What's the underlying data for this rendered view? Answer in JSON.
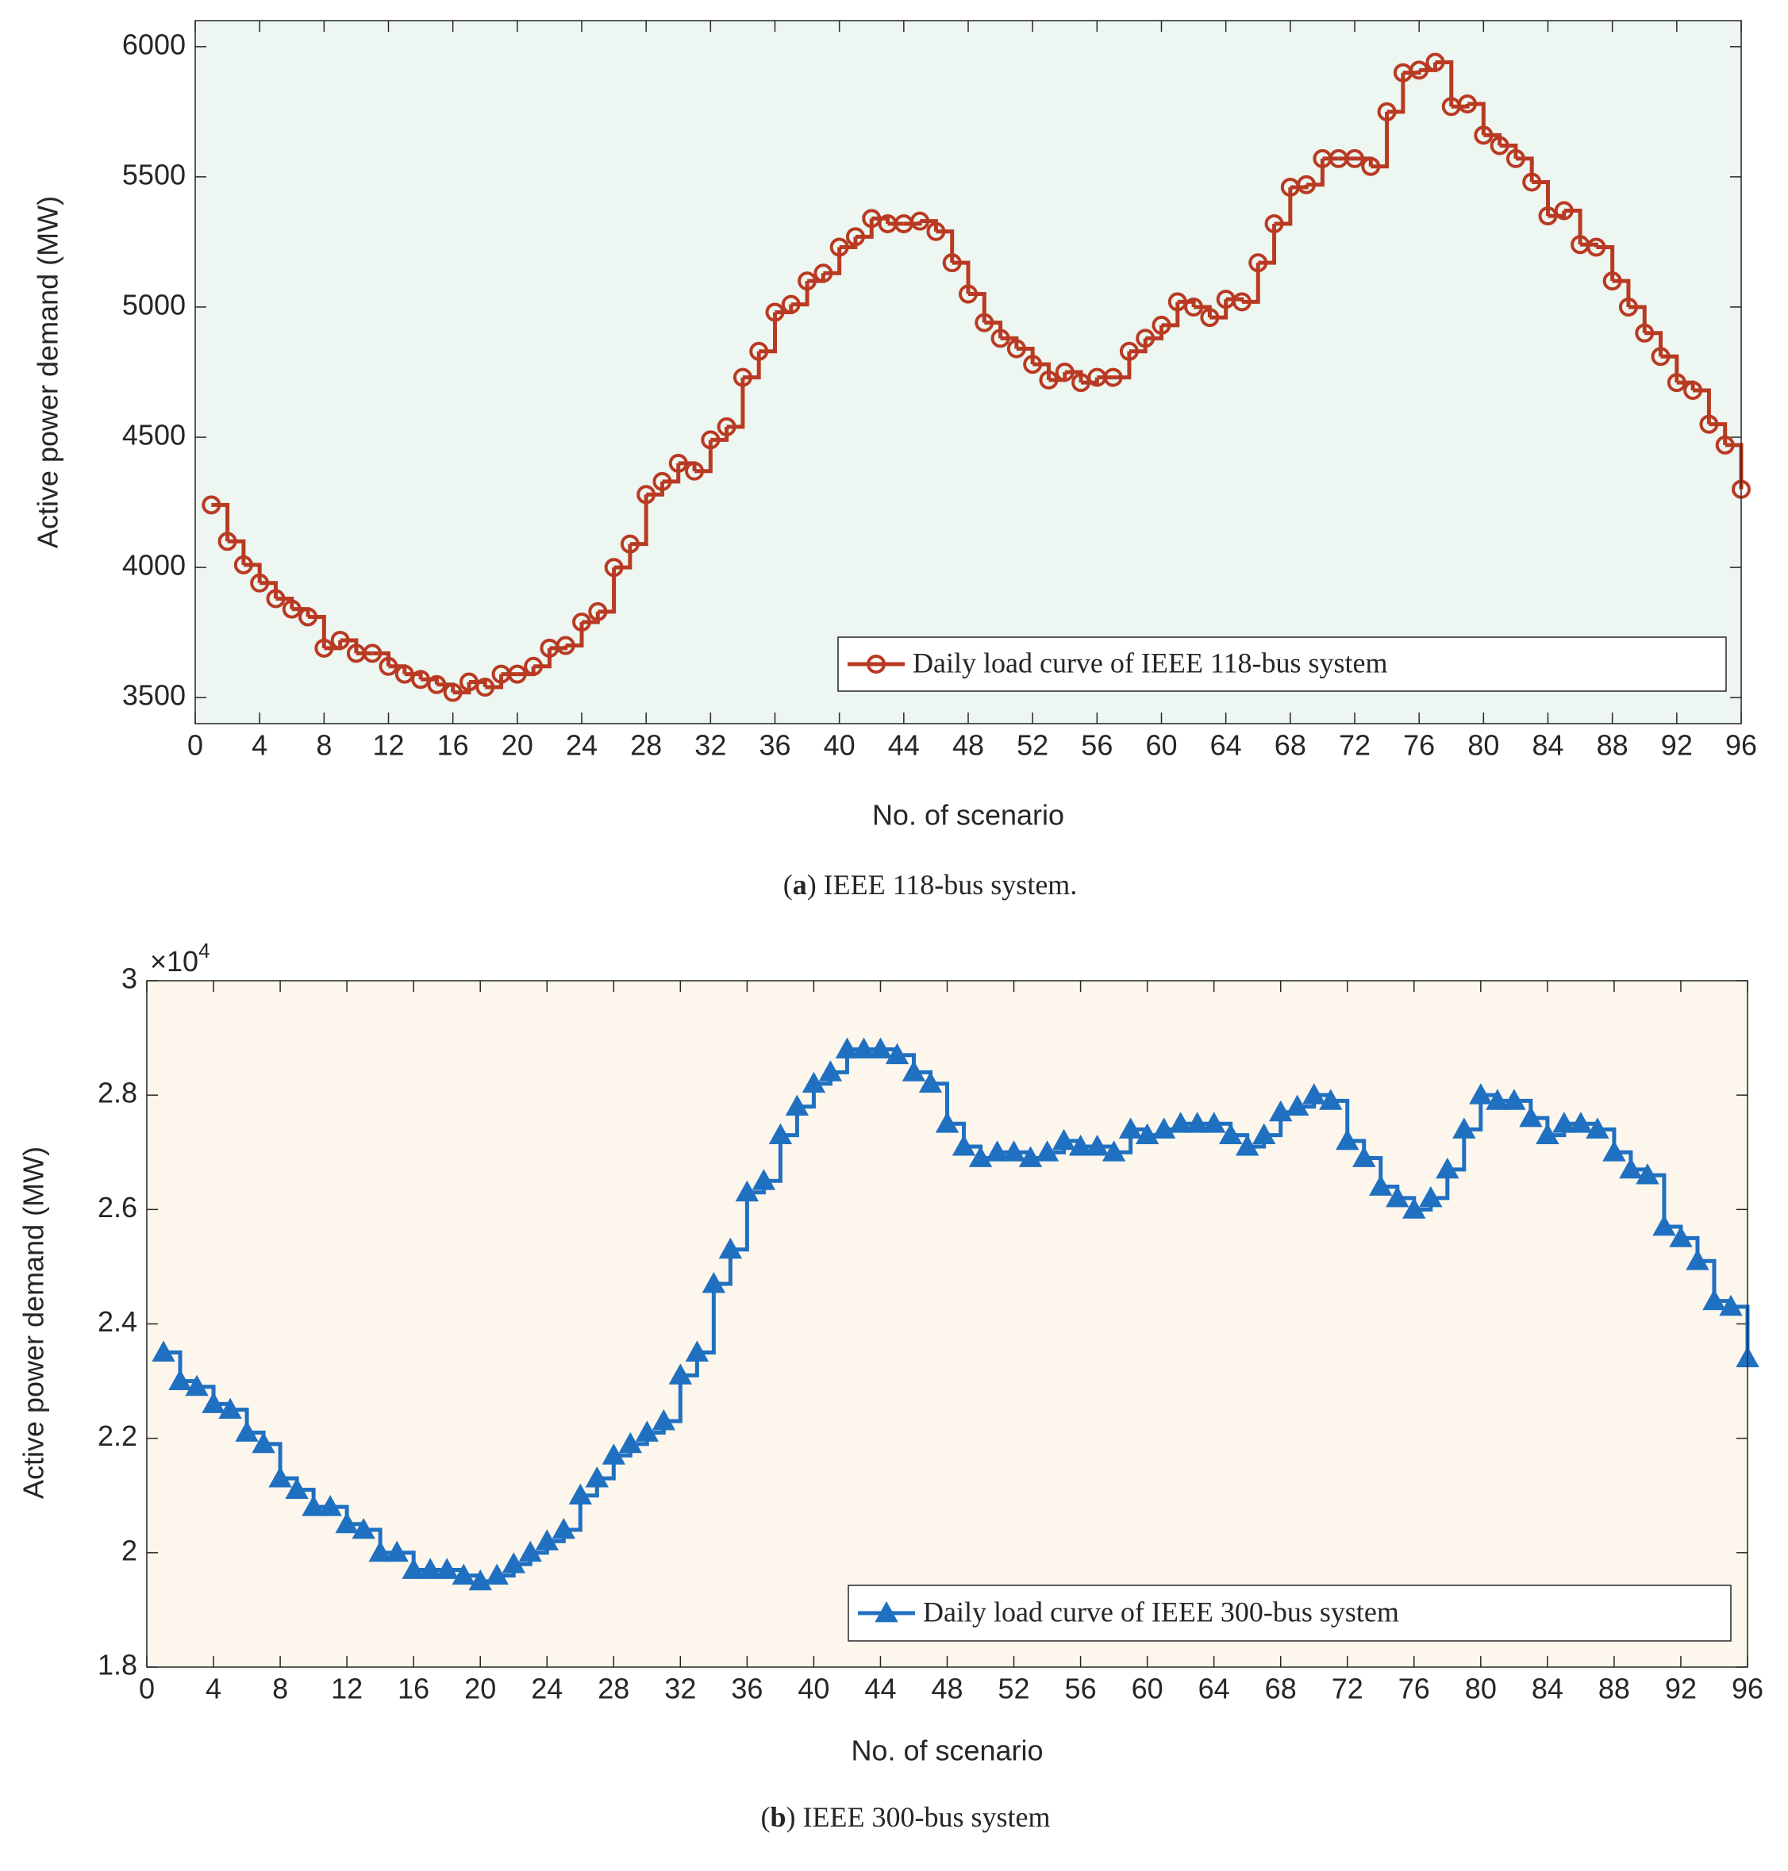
{
  "chart_data": [
    {
      "type": "line",
      "step": true,
      "marker": "circle",
      "color": "#b93a22",
      "background": "#edf6f0",
      "xlabel": "No. of scenario",
      "ylabel": "Active power demand (MW)",
      "caption": [
        "(",
        "a",
        ") IEEE 118-bus system."
      ],
      "legend": "lower right",
      "xlim": [
        0,
        96
      ],
      "xticks": [
        0,
        4,
        8,
        12,
        16,
        20,
        24,
        28,
        32,
        36,
        40,
        44,
        48,
        52,
        56,
        60,
        64,
        68,
        72,
        76,
        80,
        84,
        88,
        92,
        96
      ],
      "ylim": [
        3400,
        6100
      ],
      "yticks": [
        3500,
        4000,
        4500,
        5000,
        5500,
        6000
      ],
      "grid": false,
      "x": [
        1,
        2,
        3,
        4,
        5,
        6,
        7,
        8,
        9,
        10,
        11,
        12,
        13,
        14,
        15,
        16,
        17,
        18,
        19,
        20,
        21,
        22,
        23,
        24,
        25,
        26,
        27,
        28,
        29,
        30,
        31,
        32,
        33,
        34,
        35,
        36,
        37,
        38,
        39,
        40,
        41,
        42,
        43,
        44,
        45,
        46,
        47,
        48,
        49,
        50,
        51,
        52,
        53,
        54,
        55,
        56,
        57,
        58,
        59,
        60,
        61,
        62,
        63,
        64,
        65,
        66,
        67,
        68,
        69,
        70,
        71,
        72,
        73,
        74,
        75,
        76,
        77,
        78,
        79,
        80,
        81,
        82,
        83,
        84,
        85,
        86,
        87,
        88,
        89,
        90,
        91,
        92,
        93,
        94,
        95,
        96
      ],
      "series": [
        {
          "name": "Daily load curve of IEEE 118-bus system",
          "color": "#b93a22",
          "values": [
            4240,
            4100,
            4010,
            3940,
            3880,
            3840,
            3810,
            3690,
            3720,
            3670,
            3670,
            3620,
            3590,
            3570,
            3550,
            3520,
            3560,
            3540,
            3590,
            3590,
            3620,
            3690,
            3700,
            3790,
            3830,
            4000,
            4090,
            4280,
            4330,
            4400,
            4370,
            4490,
            4540,
            4730,
            4830,
            4980,
            5010,
            5100,
            5130,
            5230,
            5270,
            5340,
            5320,
            5320,
            5330,
            5290,
            5170,
            5050,
            4940,
            4880,
            4840,
            4780,
            4720,
            4750,
            4710,
            4730,
            4730,
            4830,
            4880,
            4930,
            5020,
            5000,
            4960,
            5030,
            5020,
            5170,
            5320,
            5460,
            5470,
            5570,
            5570,
            5570,
            5540,
            5750,
            5900,
            5910,
            5940,
            5770,
            5780,
            5660,
            5620,
            5570,
            5480,
            5350,
            5370,
            5240,
            5230,
            5100,
            5000,
            4900,
            4810,
            4710,
            4680,
            4550,
            4470,
            4300
          ]
        }
      ]
    },
    {
      "type": "line",
      "step": true,
      "marker": "triangle",
      "color": "#1f70c1",
      "background": "#fdf6ec",
      "xlabel": "No. of scenario",
      "ylabel": "Active power demand (MW)",
      "caption": [
        "(",
        "b",
        ") IEEE 300-bus system"
      ],
      "y_multiplier": {
        "base": "×10",
        "exponent": "4"
      },
      "legend": "lower right",
      "xlim": [
        0,
        96
      ],
      "xticks": [
        0,
        4,
        8,
        12,
        16,
        20,
        24,
        28,
        32,
        36,
        40,
        44,
        48,
        52,
        56,
        60,
        64,
        68,
        72,
        76,
        80,
        84,
        88,
        92,
        96
      ],
      "ylim": [
        1.8,
        3
      ],
      "yticks": [
        1.8,
        2,
        2.2,
        2.4,
        2.6,
        2.8,
        3
      ],
      "grid": false,
      "x": [
        1,
        2,
        3,
        4,
        5,
        6,
        7,
        8,
        9,
        10,
        11,
        12,
        13,
        14,
        15,
        16,
        17,
        18,
        19,
        20,
        21,
        22,
        23,
        24,
        25,
        26,
        27,
        28,
        29,
        30,
        31,
        32,
        33,
        34,
        35,
        36,
        37,
        38,
        39,
        40,
        41,
        42,
        43,
        44,
        45,
        46,
        47,
        48,
        49,
        50,
        51,
        52,
        53,
        54,
        55,
        56,
        57,
        58,
        59,
        60,
        61,
        62,
        63,
        64,
        65,
        66,
        67,
        68,
        69,
        70,
        71,
        72,
        73,
        74,
        75,
        76,
        77,
        78,
        79,
        80,
        81,
        82,
        83,
        84,
        85,
        86,
        87,
        88,
        89,
        90,
        91,
        92,
        93,
        94,
        95,
        96
      ],
      "series": [
        {
          "name": "Daily load curve of IEEE 300-bus system",
          "color": "#1f70c1",
          "values": [
            2.35,
            2.3,
            2.29,
            2.26,
            2.25,
            2.21,
            2.19,
            2.13,
            2.11,
            2.08,
            2.08,
            2.05,
            2.04,
            2.0,
            2.0,
            1.97,
            1.97,
            1.97,
            1.96,
            1.95,
            1.96,
            1.98,
            2.0,
            2.02,
            2.04,
            2.1,
            2.13,
            2.17,
            2.19,
            2.21,
            2.23,
            2.31,
            2.35,
            2.47,
            2.53,
            2.63,
            2.65,
            2.73,
            2.78,
            2.82,
            2.84,
            2.88,
            2.88,
            2.88,
            2.87,
            2.84,
            2.82,
            2.75,
            2.71,
            2.69,
            2.7,
            2.7,
            2.69,
            2.7,
            2.72,
            2.71,
            2.71,
            2.7,
            2.74,
            2.73,
            2.74,
            2.75,
            2.75,
            2.75,
            2.73,
            2.71,
            2.73,
            2.77,
            2.78,
            2.8,
            2.79,
            2.72,
            2.69,
            2.64,
            2.62,
            2.6,
            2.62,
            2.67,
            2.74,
            2.8,
            2.79,
            2.79,
            2.76,
            2.73,
            2.75,
            2.75,
            2.74,
            2.7,
            2.67,
            2.66,
            2.57,
            2.55,
            2.51,
            2.44,
            2.43,
            2.34
          ]
        }
      ]
    }
  ]
}
